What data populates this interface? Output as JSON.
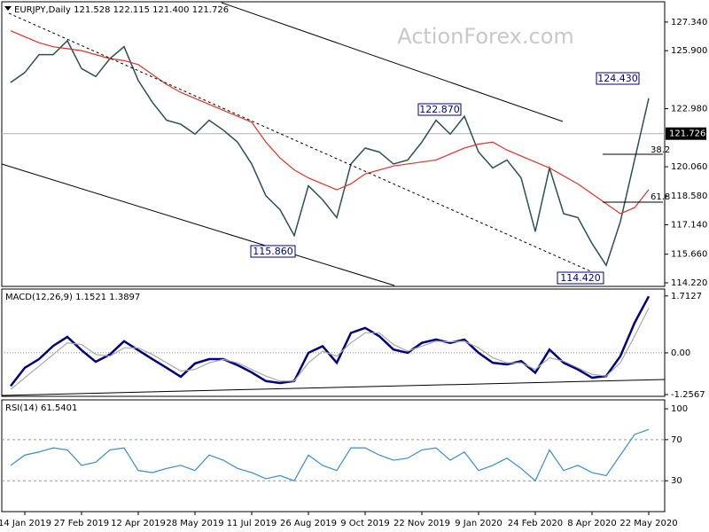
{
  "chart_data": [
    {
      "type": "line",
      "title": "EURJPY,Daily  121.528 122.115 121.400 121.726",
      "watermark": "ActionForex.com",
      "categories": [
        null,
        "14 Jan 2019",
        null,
        null,
        null,
        "27 Feb 2019",
        null,
        null,
        null,
        "12 Apr 2019",
        null,
        null,
        null,
        "28 May 2019",
        null,
        null,
        null,
        "11 Jul 2019",
        null,
        null,
        null,
        "26 Aug 2019",
        null,
        null,
        null,
        "9 Oct 2019",
        null,
        null,
        null,
        "22 Nov 2019",
        null,
        null,
        null,
        "9 Jan 2020",
        null,
        null,
        null,
        "24 Feb 2020",
        null,
        null,
        null,
        "8 Apr 2020",
        null,
        null,
        null,
        "22 May 2020"
      ],
      "series": [
        {
          "color": "#2f4f4f",
          "values": [
            124.3,
            124.8,
            125.7,
            125.7,
            126.4,
            125.0,
            124.6,
            125.5,
            126.1,
            124.4,
            123.3,
            122.4,
            122.2,
            121.7,
            122.4,
            121.9,
            121.3,
            120.2,
            118.6,
            117.9,
            116.6,
            119.1,
            118.4,
            117.5,
            120.2,
            121.0,
            120.8,
            120.2,
            120.4,
            121.3,
            122.4,
            121.7,
            122.6,
            120.8,
            120.0,
            120.4,
            119.5,
            116.8,
            120.0,
            117.7,
            117.5,
            116.2,
            115.1,
            117.3,
            120.4,
            123.5
          ]
        },
        {
          "color": "#e0302a",
          "values": [
            126.9,
            126.6,
            126.3,
            126.1,
            126.0,
            125.9,
            125.7,
            125.5,
            125.4,
            125.2,
            124.7,
            124.2,
            123.8,
            123.5,
            123.2,
            122.9,
            122.6,
            122.3,
            121.3,
            120.5,
            119.9,
            119.5,
            119.2,
            118.9,
            119.2,
            119.7,
            119.9,
            120.1,
            120.2,
            120.3,
            120.4,
            120.7,
            121.0,
            121.2,
            121.3,
            120.9,
            120.6,
            120.3,
            120.0,
            119.6,
            119.2,
            118.7,
            118.2,
            117.7,
            118.0,
            118.9
          ]
        }
      ],
      "ylim": [
        114.04,
        128.36
      ],
      "yticks": [
        {
          "value": 127.34,
          "label": "127.340"
        },
        {
          "value": 125.9,
          "label": "125.900"
        },
        {
          "value": 122.98,
          "label": "122.980"
        },
        {
          "value": 120.06,
          "label": "120.060"
        },
        {
          "value": 118.58,
          "label": "118.580"
        },
        {
          "value": 117.14,
          "label": "117.140"
        },
        {
          "value": 115.66,
          "label": "115.660"
        },
        {
          "value": 114.22,
          "label": "114.220"
        }
      ],
      "last_price": {
        "value": 121.726,
        "label": "121.726"
      },
      "annotations": [
        "115.860",
        "122.870",
        "124.430",
        "114.420",
        "38.2",
        "61.8"
      ]
    },
    {
      "type": "line",
      "title": "MACD(12,26,9) 1.1521 1.3897",
      "series": [
        {
          "color": "#000080",
          "values": [
            -1.0,
            -0.45,
            -0.19,
            0.21,
            0.48,
            0.08,
            -0.27,
            -0.05,
            0.35,
            0.08,
            -0.19,
            -0.45,
            -0.72,
            -0.32,
            -0.19,
            -0.19,
            -0.37,
            -0.59,
            -0.85,
            -0.91,
            -0.85,
            0.0,
            0.2,
            -0.3,
            0.6,
            0.75,
            0.5,
            0.1,
            0.0,
            0.3,
            0.4,
            0.3,
            0.4,
            0.0,
            -0.3,
            -0.35,
            -0.25,
            -0.6,
            0.1,
            -0.3,
            -0.5,
            -0.75,
            -0.7,
            -0.1,
            0.9,
            1.7
          ]
        },
        {
          "color": "#a8a8a8",
          "values": [
            -1.1,
            -0.75,
            -0.4,
            -0.05,
            0.3,
            0.25,
            -0.05,
            -0.1,
            0.15,
            0.15,
            -0.05,
            -0.3,
            -0.55,
            -0.5,
            -0.3,
            -0.2,
            -0.3,
            -0.5,
            -0.7,
            -0.85,
            -0.85,
            -0.3,
            0.05,
            -0.1,
            0.3,
            0.6,
            0.6,
            0.25,
            0.05,
            0.2,
            0.35,
            0.33,
            0.35,
            0.15,
            -0.15,
            -0.3,
            -0.3,
            -0.5,
            -0.15,
            -0.25,
            -0.45,
            -0.65,
            -0.7,
            -0.3,
            0.5,
            1.35
          ]
        }
      ],
      "ylim": [
        -1.31,
        1.92
      ],
      "yticks": [
        1.7127,
        {
          "value": 0,
          "label": "0.00"
        },
        -1.2567
      ]
    },
    {
      "type": "line",
      "title": "RSI(14) 61.5401",
      "series": [
        {
          "color": "#3a8ccb",
          "values": [
            45,
            55,
            58,
            62,
            60,
            45,
            48,
            60,
            62,
            40,
            38,
            42,
            45,
            40,
            55,
            50,
            42,
            38,
            32,
            35,
            30,
            55,
            45,
            40,
            62,
            62,
            55,
            50,
            52,
            60,
            62,
            50,
            58,
            40,
            45,
            52,
            42,
            30,
            60,
            40,
            45,
            38,
            35,
            55,
            75,
            80
          ]
        }
      ],
      "ylim": [
        0,
        108.7
      ],
      "yticks": [
        100,
        70,
        30
      ],
      "levels": [
        70,
        30
      ]
    }
  ]
}
